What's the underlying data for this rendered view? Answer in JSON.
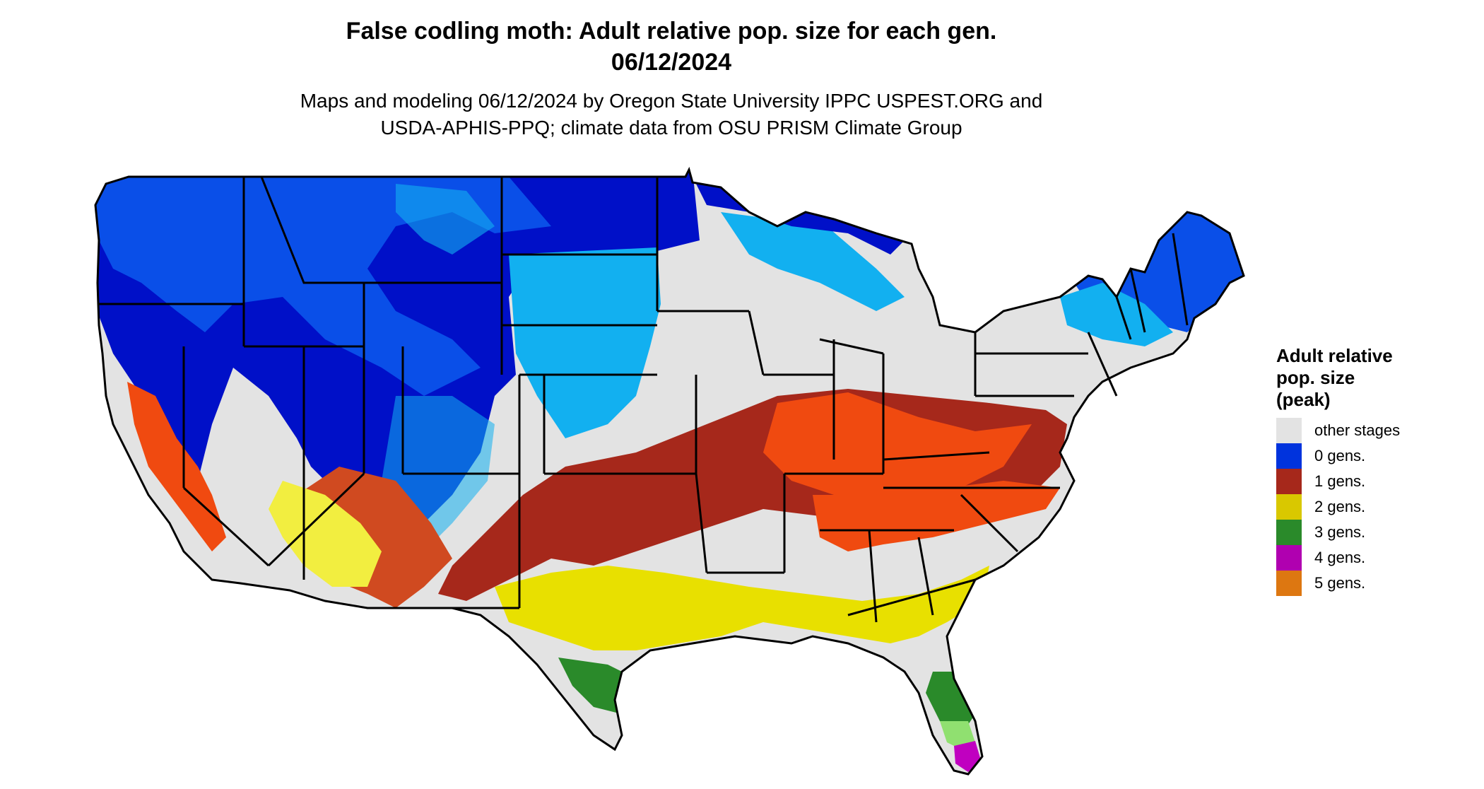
{
  "map": {
    "title_line1": "False codling moth: Adult relative pop. size for each gen.",
    "title_line2": "06/12/2024",
    "subtitle_line1": "Maps and modeling 06/12/2024 by Oregon State University IPPC USPEST.ORG and",
    "subtitle_line2": "USDA-APHIS-PPQ; climate data from OSU PRISM Climate Group"
  },
  "legend": {
    "title_line1": "Adult relative",
    "title_line2": "pop. size",
    "title_line3": "(peak)",
    "items": [
      {
        "label": "other stages",
        "color": "#e3e3e3"
      },
      {
        "label": "0 gens.",
        "color": "#0033dd"
      },
      {
        "label": "1 gens.",
        "color": "#a6281b"
      },
      {
        "label": "2 gens.",
        "color": "#d9c800"
      },
      {
        "label": "3 gens.",
        "color": "#2a8a2a"
      },
      {
        "label": "4 gens.",
        "color": "#b000b0"
      },
      {
        "label": "5 gens.",
        "color": "#dd7711"
      }
    ]
  },
  "colors": {
    "other": "#e3e3e3",
    "zero_dark": "#0010c8",
    "zero_mid": "#0a4fe8",
    "zero_light": "#12b0f0",
    "one_dark": "#a6281b",
    "one_light": "#f04a10",
    "two_main": "#e8e000",
    "two_light": "#f2ee40",
    "three_main": "#2a8a2a",
    "three_light": "#90e070",
    "four_main": "#c000c0",
    "border": "#000000"
  }
}
